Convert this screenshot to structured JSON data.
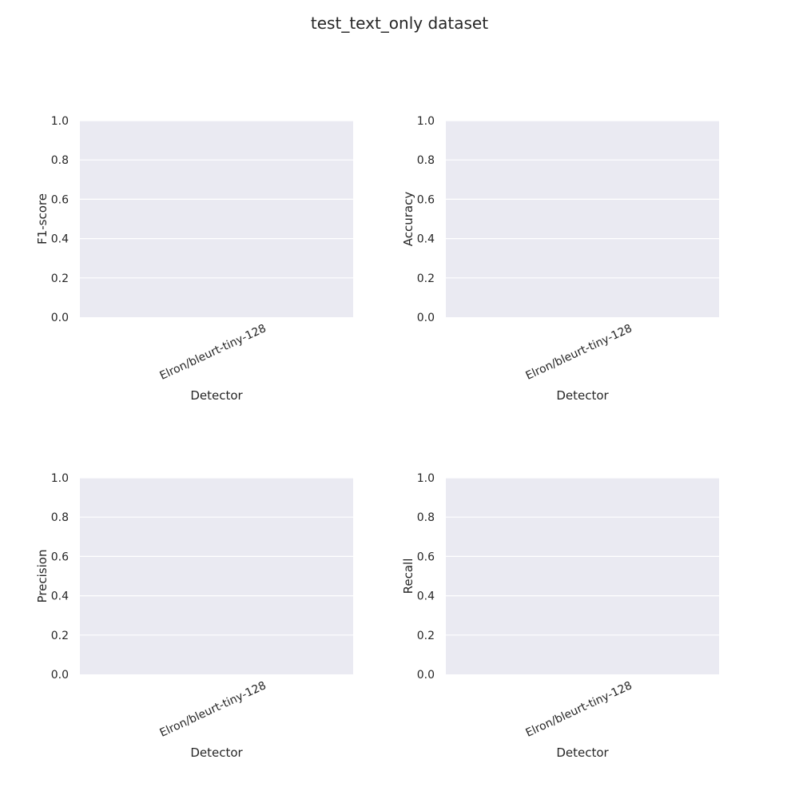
{
  "chart_data": {
    "title": "test_text_only dataset",
    "panels": [
      {
        "type": "bar",
        "xlabel": "Detector",
        "ylabel": "F1-score",
        "categories": [
          "Elron/bleurt-tiny-128"
        ],
        "values": [
          0.0
        ],
        "ylim": [
          0,
          1
        ],
        "yticks": [
          "0.0",
          "0.2",
          "0.4",
          "0.6",
          "0.8",
          "1.0"
        ],
        "grid": true
      },
      {
        "type": "bar",
        "xlabel": "Detector",
        "ylabel": "Accuracy",
        "categories": [
          "Elron/bleurt-tiny-128"
        ],
        "values": [
          0.0
        ],
        "ylim": [
          0,
          1
        ],
        "yticks": [
          "0.0",
          "0.2",
          "0.4",
          "0.6",
          "0.8",
          "1.0"
        ],
        "grid": true
      },
      {
        "type": "bar",
        "xlabel": "Detector",
        "ylabel": "Precision",
        "categories": [
          "Elron/bleurt-tiny-128"
        ],
        "values": [
          0.0
        ],
        "ylim": [
          0,
          1
        ],
        "yticks": [
          "0.0",
          "0.2",
          "0.4",
          "0.6",
          "0.8",
          "1.0"
        ],
        "grid": true
      },
      {
        "type": "bar",
        "xlabel": "Detector",
        "ylabel": "Recall",
        "categories": [
          "Elron/bleurt-tiny-128"
        ],
        "values": [
          0.0
        ],
        "ylim": [
          0,
          1
        ],
        "yticks": [
          "0.0",
          "0.2",
          "0.4",
          "0.6",
          "0.8",
          "1.0"
        ],
        "grid": true
      }
    ]
  },
  "colors": {
    "plot_background": "#eaeaf2",
    "grid": "#ffffff",
    "text": "#262626",
    "bar": "#4c72b0"
  }
}
